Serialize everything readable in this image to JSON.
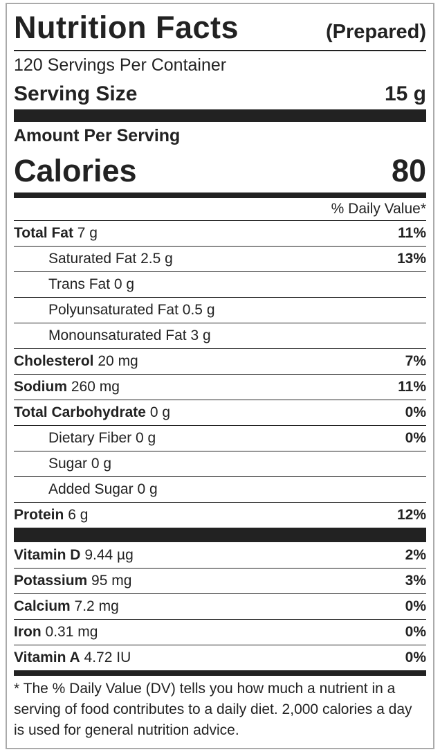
{
  "header": {
    "title": "Nutrition Facts",
    "qualifier": "(Prepared)"
  },
  "servings": "120 Servings Per Container",
  "serving_size": {
    "label": "Serving Size",
    "value": "15 g"
  },
  "amount_per_serving": "Amount Per Serving",
  "calories": {
    "label": "Calories",
    "value": "80"
  },
  "daily_value_header": "% Daily Value*",
  "nutrients": [
    {
      "name": "Total Fat",
      "amount": "7 g",
      "dv": "11%",
      "sub": [
        {
          "name": "Saturated Fat",
          "amount": "2.5 g",
          "dv": "13%"
        },
        {
          "name": "Trans Fat",
          "amount": "0 g"
        },
        {
          "name": "Polyunsaturated Fat",
          "amount": "0.5 g"
        },
        {
          "name": "Monounsaturated Fat",
          "amount": "3 g"
        }
      ]
    },
    {
      "name": "Cholesterol",
      "amount": "20 mg",
      "dv": "7%"
    },
    {
      "name": "Sodium",
      "amount": "260 mg",
      "dv": "11%"
    },
    {
      "name": "Total Carbohydrate",
      "amount": "0 g",
      "dv": "0%",
      "sub": [
        {
          "name": "Dietary Fiber",
          "amount": "0 g",
          "dv": "0%"
        },
        {
          "name": "Sugar",
          "amount": "0 g"
        },
        {
          "name": "Added Sugar",
          "amount": "0 g"
        }
      ]
    },
    {
      "name": "Protein",
      "amount": "6 g",
      "dv": "12%"
    }
  ],
  "vitamins": [
    {
      "name": "Vitamin D",
      "amount": "9.44 µg",
      "dv": "2%"
    },
    {
      "name": "Potassium",
      "amount": "95 mg",
      "dv": "3%"
    },
    {
      "name": "Calcium",
      "amount": "7.2 mg",
      "dv": "0%"
    },
    {
      "name": "Iron",
      "amount": "0.31 mg",
      "dv": "0%"
    },
    {
      "name": "Vitamin A",
      "amount": "4.72 IU",
      "dv": "0%"
    }
  ],
  "footnote": "* The % Daily Value (DV) tells you how much a nutrient in a serving of food contributes to a daily diet. 2,000 calories a day is used for general nutrition advice."
}
